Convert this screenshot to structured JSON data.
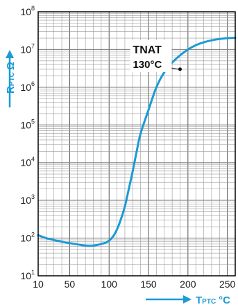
{
  "chart_data": {
    "type": "line",
    "title": "",
    "xlabel_main": "T",
    "xlabel_sub": "PTC",
    "xlabel_unit": "°C",
    "ylabel_main": "R",
    "ylabel_sub": "PTC",
    "ylabel_unit": "Ω",
    "y_scale": "log",
    "xlim": [
      10,
      260
    ],
    "ylim": [
      10,
      100000000
    ],
    "x_ticks": [
      {
        "value": 10,
        "label": "10"
      },
      {
        "value": 50,
        "label": "50"
      },
      {
        "value": 100,
        "label": "100"
      },
      {
        "value": 150,
        "label": "150"
      },
      {
        "value": 200,
        "label": "200"
      },
      {
        "value": 250,
        "label": "250"
      }
    ],
    "y_ticks": [
      {
        "value": 10,
        "base": "10",
        "exp": "1"
      },
      {
        "value": 100,
        "base": "10",
        "exp": "2"
      },
      {
        "value": 1000,
        "base": "10",
        "exp": "3"
      },
      {
        "value": 10000,
        "base": "10",
        "exp": "4"
      },
      {
        "value": 100000,
        "base": "10",
        "exp": "5"
      },
      {
        "value": 1000000,
        "base": "10",
        "exp": "6"
      },
      {
        "value": 10000000,
        "base": "10",
        "exp": "7"
      },
      {
        "value": 100000000,
        "base": "10",
        "exp": "8"
      }
    ],
    "grid": true,
    "series": [
      {
        "color": "#1a9ad6",
        "points": [
          [
            10,
            120
          ],
          [
            20,
            100
          ],
          [
            40,
            80
          ],
          [
            60,
            68
          ],
          [
            75,
            62
          ],
          [
            85,
            66
          ],
          [
            95,
            75
          ],
          [
            100,
            85
          ],
          [
            105,
            110
          ],
          [
            110,
            170
          ],
          [
            115,
            320
          ],
          [
            120,
            700
          ],
          [
            125,
            2000
          ],
          [
            130,
            6000
          ],
          [
            135,
            20000
          ],
          [
            140,
            60000
          ],
          [
            150,
            250000
          ],
          [
            160,
            1000000
          ],
          [
            170,
            2500000
          ],
          [
            180,
            4500000
          ],
          [
            190,
            7000000
          ],
          [
            200,
            10000000
          ],
          [
            210,
            13000000
          ],
          [
            220,
            15500000
          ],
          [
            230,
            17500000
          ],
          [
            240,
            19000000
          ],
          [
            250,
            20000000
          ],
          [
            260,
            20500000
          ]
        ]
      }
    ],
    "annotations": [
      {
        "line1": "TNAT",
        "line2": "130°C",
        "x": 190,
        "y": 3000000
      }
    ]
  }
}
